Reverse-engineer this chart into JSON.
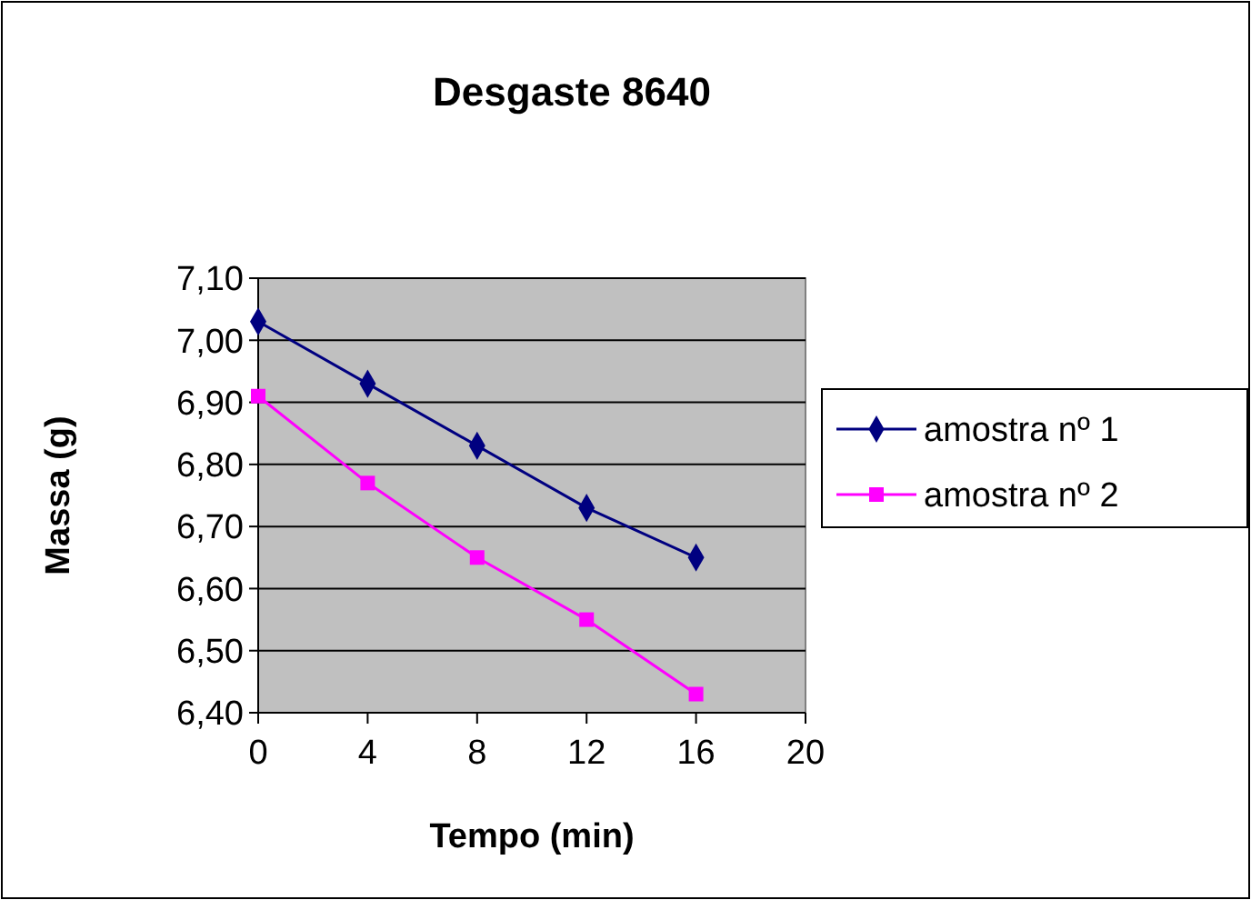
{
  "chart_data": {
    "type": "line",
    "title": "Desgaste 8640",
    "xlabel": "Tempo (min)",
    "ylabel": "Massa (g)",
    "x": [
      0,
      4,
      8,
      12,
      16
    ],
    "series": [
      {
        "name": "amostra nº 1",
        "color": "#000080",
        "marker": "diamond",
        "values": [
          7.03,
          6.93,
          6.83,
          6.73,
          6.65
        ]
      },
      {
        "name": "amostra nº 2",
        "color": "#ff00ff",
        "marker": "square",
        "values": [
          6.91,
          6.77,
          6.65,
          6.55,
          6.43
        ]
      }
    ],
    "xlim": [
      0,
      20
    ],
    "xticks": [
      0,
      4,
      8,
      12,
      16,
      20
    ],
    "ylim": [
      6.4,
      7.1
    ],
    "yticks": [
      {
        "value": 6.4,
        "label": "6,40"
      },
      {
        "value": 6.5,
        "label": "6,50"
      },
      {
        "value": 6.6,
        "label": "6,60"
      },
      {
        "value": 6.7,
        "label": "6,70"
      },
      {
        "value": 6.8,
        "label": "6,80"
      },
      {
        "value": 6.9,
        "label": "6,90"
      },
      {
        "value": 7.0,
        "label": "7,00"
      },
      {
        "value": 7.1,
        "label": "7,10"
      }
    ],
    "grid": "y",
    "legend": "right"
  }
}
